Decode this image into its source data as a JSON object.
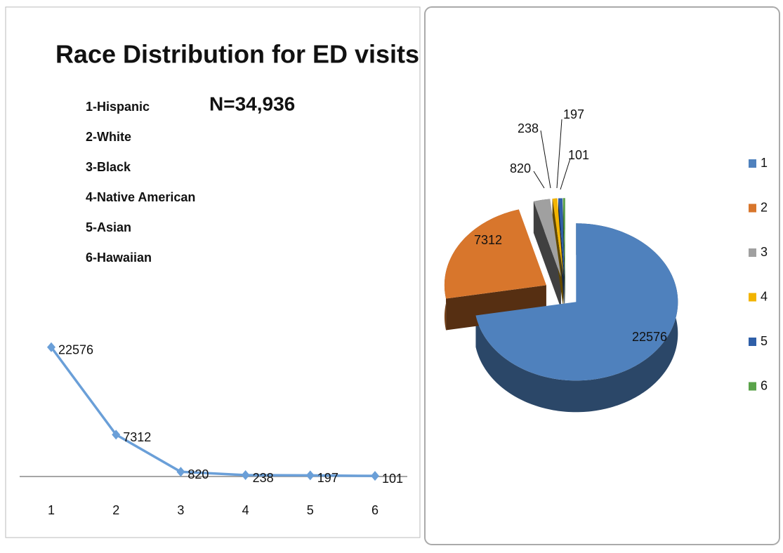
{
  "chart_data": [
    {
      "type": "line",
      "title": "Race Distribution for ED visits",
      "subtitle": "N=34,936",
      "annotations": [
        "1-Hispanic",
        "2-White",
        "3-Black",
        "4-Native American",
        "5-Asian",
        "6-Hawaiian"
      ],
      "categories": [
        "1",
        "2",
        "3",
        "4",
        "5",
        "6"
      ],
      "values": [
        22576,
        7312,
        820,
        238,
        197,
        101
      ],
      "color": "#6a9fd8",
      "ylim": [
        0,
        25000
      ]
    },
    {
      "type": "pie",
      "categories": [
        "1",
        "2",
        "3",
        "4",
        "5",
        "6"
      ],
      "values": [
        22576,
        7312,
        820,
        238,
        197,
        101
      ],
      "colors": [
        "#4f81bd",
        "#d8762c",
        "#a0a0a0",
        "#f2b400",
        "#2f5fa8",
        "#5aa34a"
      ],
      "legend": "right"
    }
  ]
}
